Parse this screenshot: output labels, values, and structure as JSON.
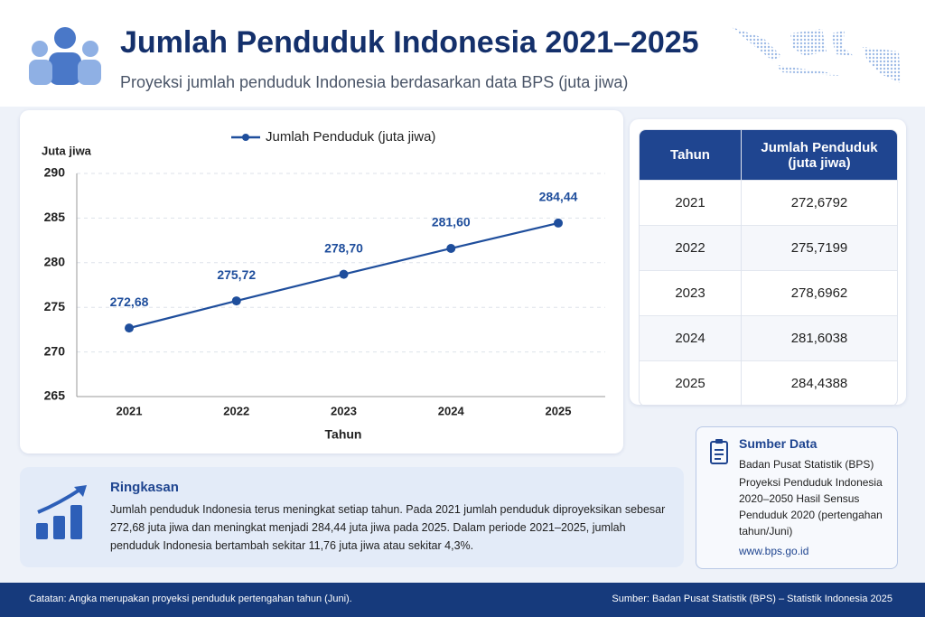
{
  "header": {
    "title": "Jumlah Penduduk Indonesia 2021–2025",
    "subtitle": "Proyeksi jumlah penduduk Indonesia berdasarkan data BPS (juta jiwa)"
  },
  "chart_data": {
    "type": "line",
    "y_label": "Juta jiwa",
    "x_label": "Tahun",
    "categories": [
      "2021",
      "2022",
      "2023",
      "2024",
      "2025"
    ],
    "series": [
      {
        "name": "Jumlah Penduduk (juta jiwa)",
        "color": "#1f4e9c",
        "values": [
          272.68,
          275.72,
          278.7,
          281.6,
          284.44
        ],
        "value_labels": [
          "272,68",
          "275,72",
          "278,70",
          "281,60",
          "284,44"
        ]
      }
    ],
    "ylim": [
      265,
      290
    ],
    "yticks": [
      265,
      270,
      275,
      280,
      285,
      290
    ],
    "grid": true,
    "legend": "top"
  },
  "table": {
    "header": [
      "Tahun",
      "Jumlah Penduduk (juta jiwa)"
    ],
    "rows": [
      [
        "2021",
        "272,6792"
      ],
      [
        "2022",
        "275,7199"
      ],
      [
        "2023",
        "278,6962"
      ],
      [
        "2024",
        "281,6038"
      ],
      [
        "2025",
        "284,4388"
      ]
    ]
  },
  "summary": {
    "title": "Ringkasan",
    "text": "Jumlah penduduk Indonesia terus meningkat setiap tahun. Pada 2021 jumlah penduduk diproyeksikan sebesar 272,68 juta jiwa dan meningkat menjadi 284,44 juta jiwa pada 2025. Dalam periode 2021–2025, jumlah penduduk Indonesia bertambah sekitar 11,76 juta jiwa atau sekitar 4,3%."
  },
  "source": {
    "title": "Sumber Data",
    "lines": [
      "Badan Pusat Statistik (BPS)",
      "Proyeksi Penduduk Indonesia 2020–2050 Hasil Sensus Penduduk 2020 (pertengahan tahun/Juni)",
      "www.bps.go.id"
    ]
  },
  "footer": {
    "note": "Catatan: Angka merupakan proyeksi penduduk pertengahan tahun (Juni).",
    "source": "Sumber: Badan Pusat Statistik (BPS) – Statistik Indonesia 2025"
  }
}
